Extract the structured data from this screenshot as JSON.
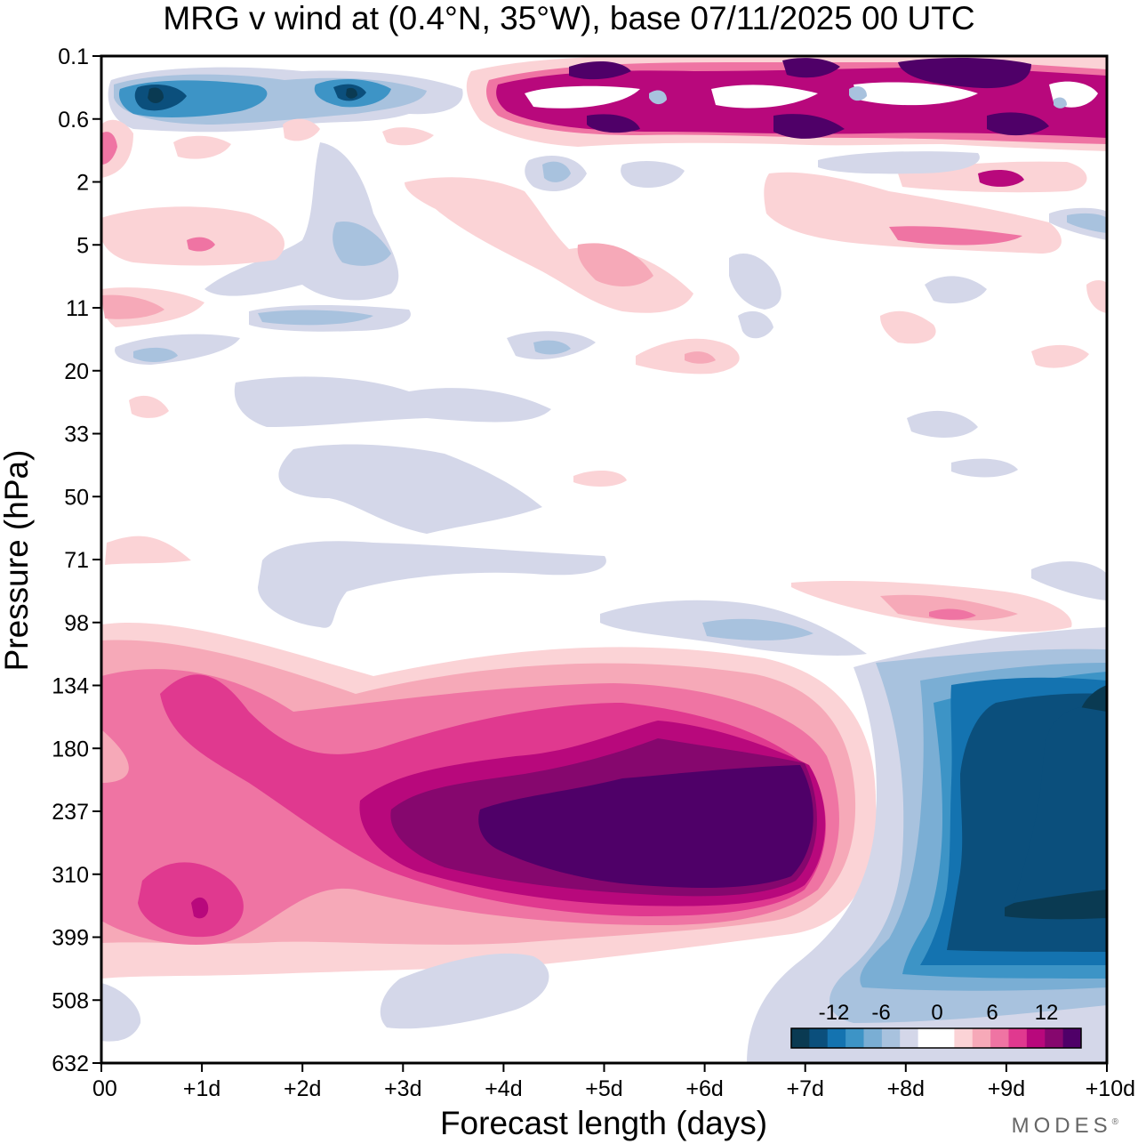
{
  "chart_data": {
    "type": "heatmap",
    "title": "MRG v wind at (0.4°N, 35°W),  base 07/11/2025  00 UTC",
    "xlabel": "Forecast length (days)",
    "ylabel": "Pressure (hPa)",
    "x_ticks": [
      "00",
      "+1d",
      "+2d",
      "+3d",
      "+4d",
      "+5d",
      "+6d",
      "+7d",
      "+8d",
      "+9d",
      "+10d"
    ],
    "xlim": [
      0,
      10
    ],
    "y_ticks": [
      "0.1",
      "0.6",
      "2",
      "5",
      "11",
      "20",
      "33",
      "50",
      "71",
      "98",
      "134",
      "180",
      "237",
      "310",
      "399",
      "508",
      "632"
    ],
    "y_scale": "log",
    "colorbar": {
      "tick_labels": [
        "-12",
        "-6",
        "0",
        "6",
        "12"
      ],
      "levels": [
        -16,
        -14,
        -12,
        -10,
        -8,
        -6,
        -4,
        -2,
        2,
        4,
        6,
        8,
        10,
        12,
        14,
        16
      ],
      "colors": [
        "#0a3a52",
        "#0b4f7c",
        "#1473b0",
        "#3d94c6",
        "#7aaed4",
        "#a8c2de",
        "#d4d7e9",
        "#ffffff",
        "#ffffff",
        "#fbd3d6",
        "#f6a9b8",
        "#ef74a3",
        "#e0398f",
        "#b8087c",
        "#86076e",
        "#4f0068"
      ],
      "placement": "bottom-right"
    },
    "features": [
      {
        "name": "positive lower-troposphere maximum",
        "day_start": 0,
        "day_end": 7.5,
        "pressure_top_hPa": 115,
        "pressure_bottom_hPa": 450,
        "peak_value": 16,
        "peak_day": 5.6,
        "peak_pressure_hPa": 250
      },
      {
        "name": "negative lower-troposphere maximum",
        "day_start": 7.5,
        "day_end": 10,
        "pressure_top_hPa": 115,
        "pressure_bottom_hPa": 620,
        "peak_value": -16,
        "peak_day": 9.6,
        "peak_pressure_hPa": 340
      },
      {
        "name": "upper negative band",
        "day_start": 0.2,
        "day_end": 3.6,
        "pressure_top_hPa": 0.2,
        "pressure_bottom_hPa": 0.8,
        "peak_value": -16
      },
      {
        "name": "upper positive band",
        "day_start": 3.7,
        "day_end": 10,
        "pressure_top_hPa": 0.1,
        "pressure_bottom_hPa": 1.2,
        "peak_value": 16
      }
    ]
  },
  "branding": {
    "text": "MODES",
    "mark": "®"
  }
}
